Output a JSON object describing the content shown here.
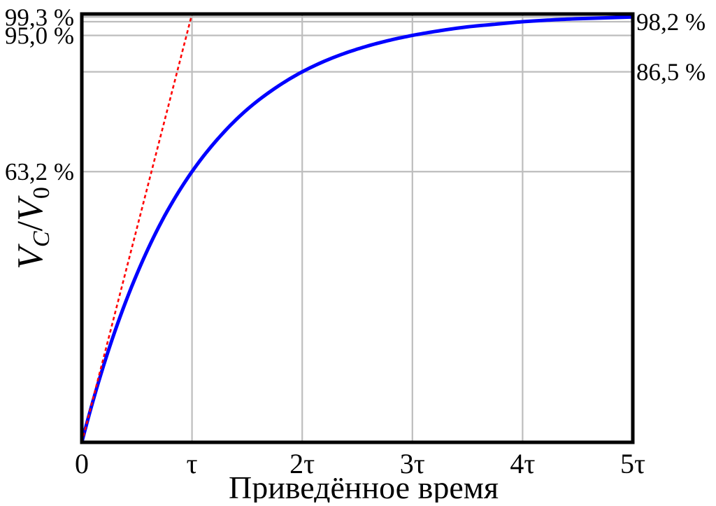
{
  "chart_data": {
    "type": "line",
    "title": "",
    "xlabel": "Приведённое время",
    "ylabel": "V_C/V_0",
    "ylabel_parts": {
      "main1": "V",
      "sub1": "C",
      "slash": "/",
      "main2": "V",
      "sub2": "0"
    },
    "xlim": [
      0,
      5
    ],
    "ylim": [
      0,
      100
    ],
    "grid": true,
    "x_ticks": [
      {
        "value": 0,
        "label": "0"
      },
      {
        "value": 1,
        "label": "τ"
      },
      {
        "value": 2,
        "label": "2τ"
      },
      {
        "value": 3,
        "label": "3τ"
      },
      {
        "value": 4,
        "label": "4τ"
      },
      {
        "value": 5,
        "label": "5τ"
      }
    ],
    "y_ticks_left": [
      {
        "value": 99.3,
        "label": "99,3 %"
      },
      {
        "value": 95.0,
        "label": "95,0 %"
      },
      {
        "value": 63.2,
        "label": "63,2 %"
      }
    ],
    "y_ticks_right": [
      {
        "value": 98.2,
        "label": "98,2 %"
      },
      {
        "value": 86.5,
        "label": "86,5 %"
      }
    ],
    "series": [
      {
        "style": "solid",
        "color": "#0000ff",
        "x": [
          0,
          0.25,
          0.5,
          0.75,
          1,
          1.25,
          1.5,
          1.75,
          2,
          2.25,
          2.5,
          2.75,
          3,
          3.25,
          3.5,
          3.75,
          4,
          4.25,
          4.5,
          4.75,
          5
        ],
        "y": [
          0,
          22.1,
          39.3,
          52.8,
          63.2,
          71.3,
          77.7,
          82.6,
          86.5,
          89.5,
          91.8,
          93.6,
          95.0,
          96.1,
          97.0,
          97.6,
          98.2,
          98.6,
          98.9,
          99.1,
          99.3
        ]
      },
      {
        "style": "dotted",
        "color": "#ff0000",
        "x": [
          0,
          1
        ],
        "y": [
          0,
          100
        ]
      }
    ]
  }
}
